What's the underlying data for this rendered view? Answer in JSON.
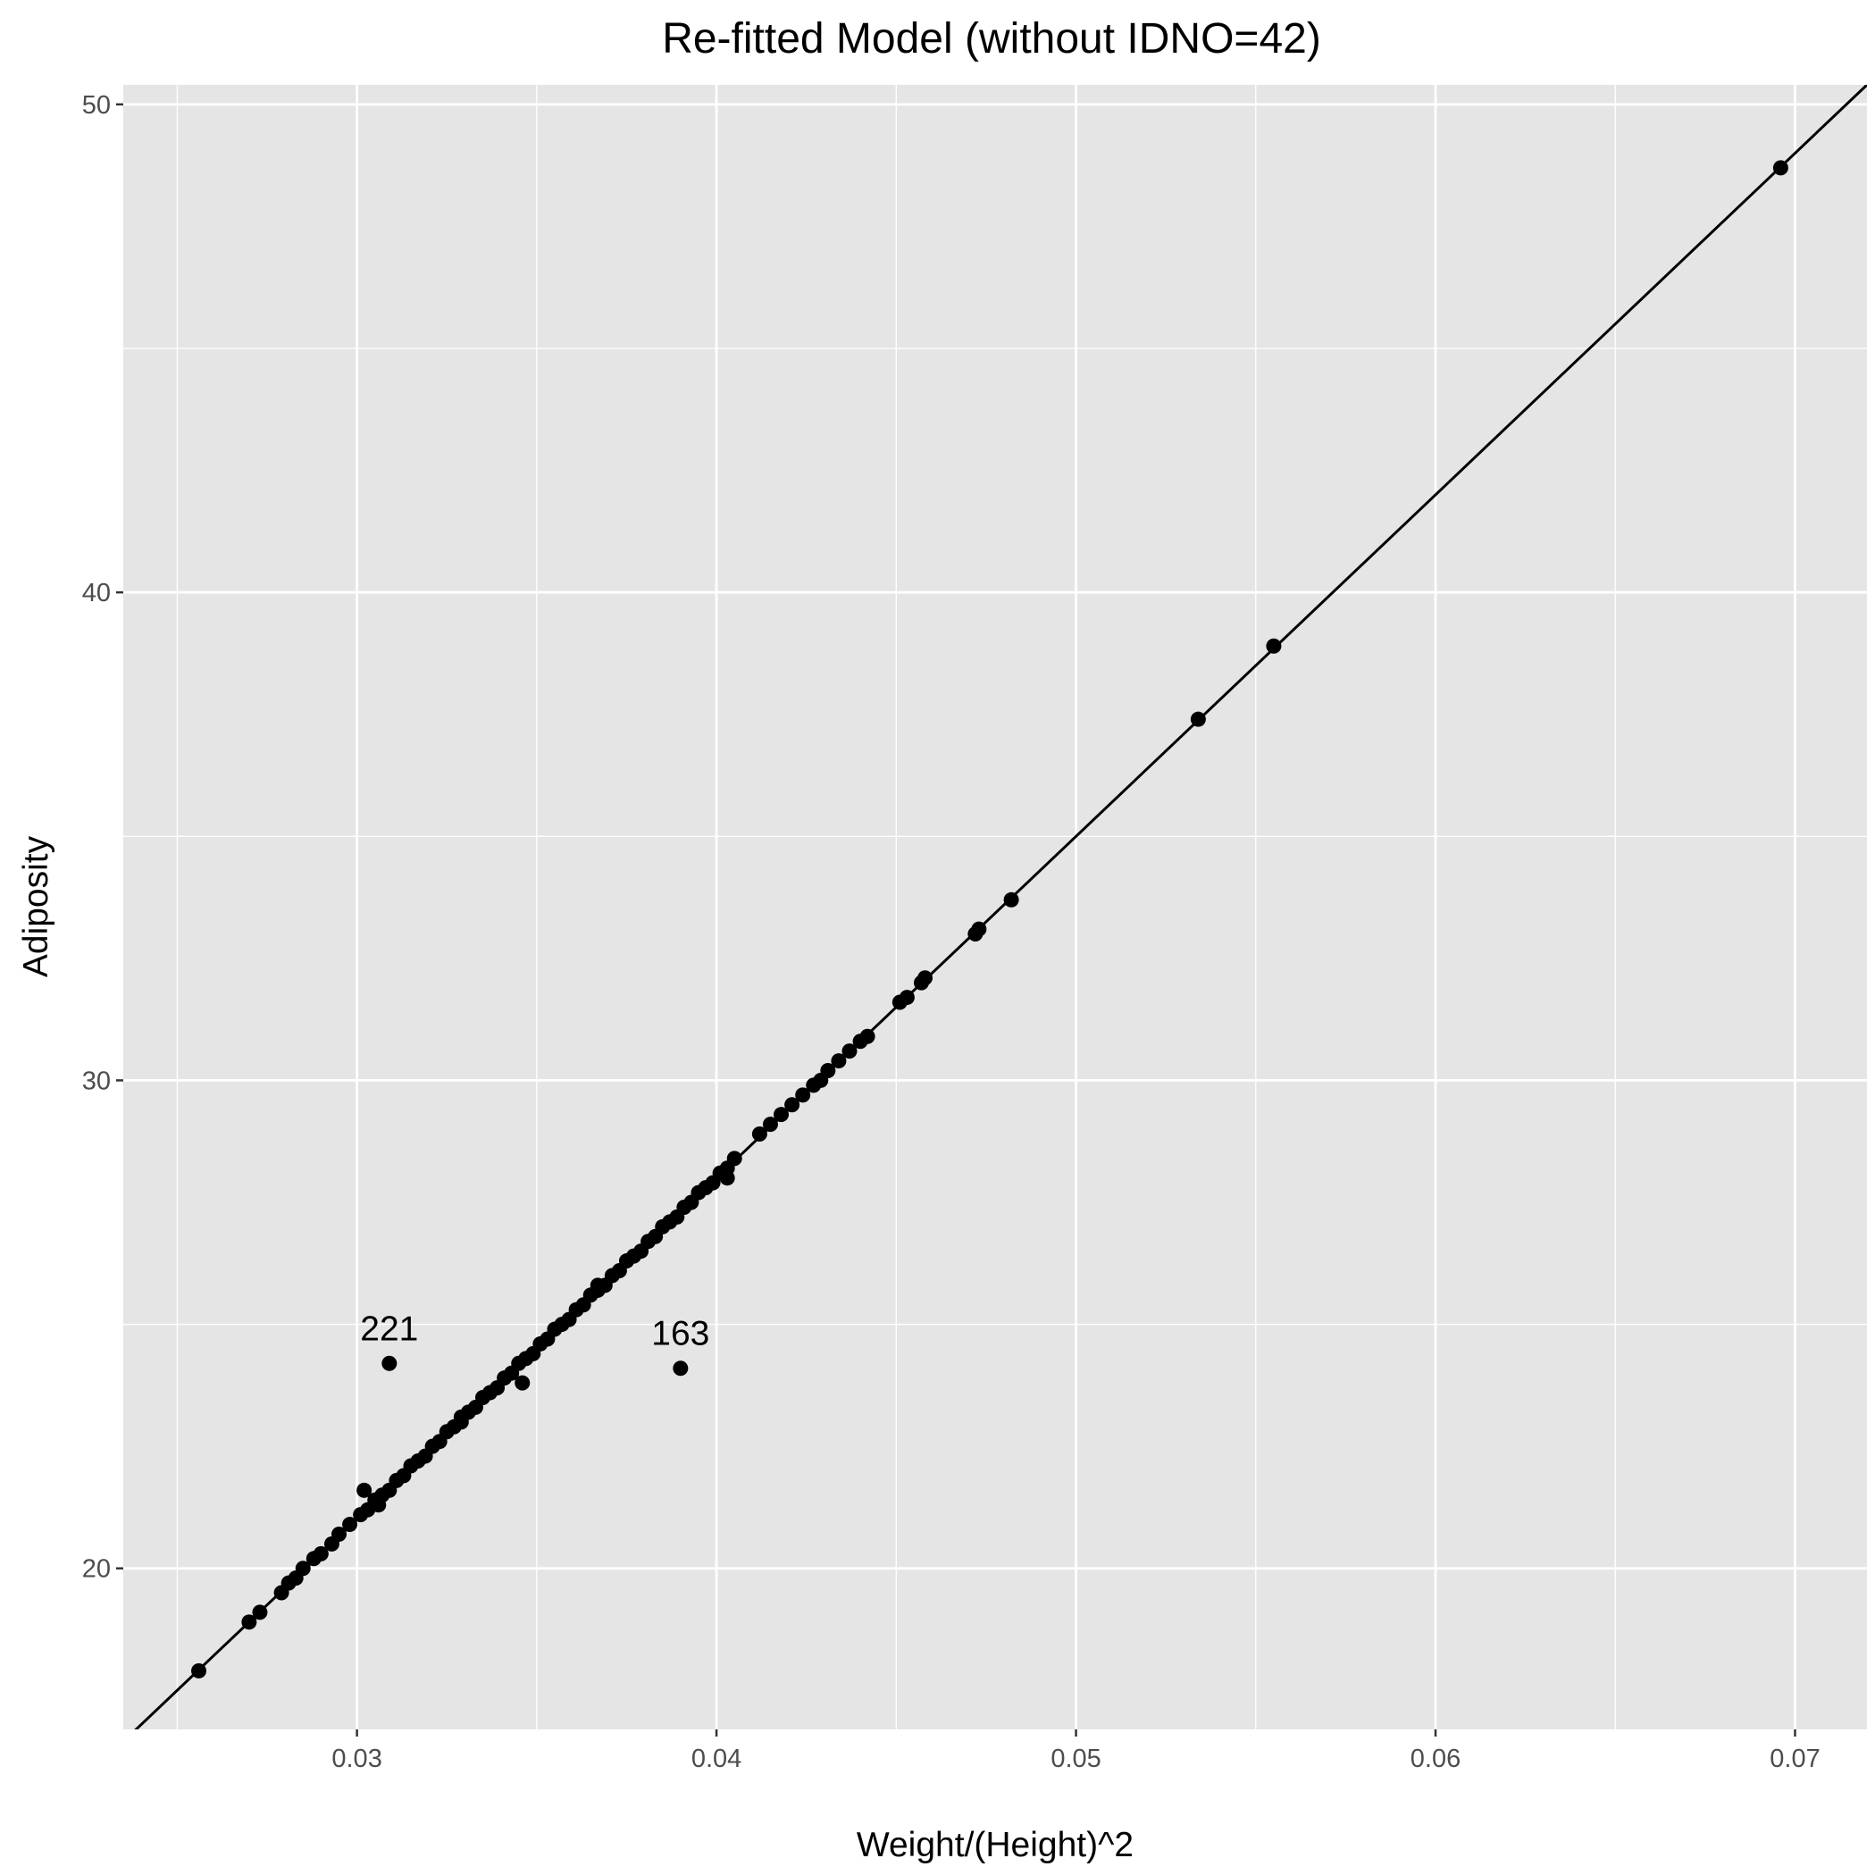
{
  "chart_data": {
    "type": "scatter",
    "title": "Re-fitted Model (without IDNO=42)",
    "xlabel": "Weight/(Height)^2",
    "ylabel": "Adiposity",
    "xlim": [
      0.0235,
      0.072
    ],
    "ylim": [
      16.7,
      50.4
    ],
    "x_ticks": [
      0.03,
      0.04,
      0.05,
      0.06,
      0.07
    ],
    "x_tick_labels": [
      "0.03",
      "0.04",
      "0.05",
      "0.06",
      "0.07"
    ],
    "y_ticks": [
      20,
      30,
      40,
      50
    ],
    "y_tick_labels": [
      "20",
      "30",
      "40",
      "50"
    ],
    "x_minor_ticks": [
      0.025,
      0.035,
      0.045,
      0.055,
      0.065
    ],
    "y_minor_ticks": [
      25,
      35,
      45
    ],
    "grid": true,
    "background": "#e5e5e5",
    "grid_color": "#ffffff",
    "point_color": "#000000",
    "line": {
      "description": "fitted line",
      "slope": 700,
      "intercept": 0
    },
    "points": {
      "x": [
        0.0256,
        0.027,
        0.0273,
        0.0279,
        0.0281,
        0.0283,
        0.0285,
        0.0288,
        0.029,
        0.0293,
        0.0295,
        0.0298,
        0.0301,
        0.0303,
        0.0305,
        0.0307,
        0.0309,
        0.0311,
        0.0313,
        0.0315,
        0.0317,
        0.0319,
        0.0321,
        0.0323,
        0.0325,
        0.0327,
        0.0329,
        0.0331,
        0.0333,
        0.0335,
        0.0337,
        0.0339,
        0.0341,
        0.0343,
        0.0345,
        0.0347,
        0.0349,
        0.0351,
        0.0353,
        0.0355,
        0.0357,
        0.0359,
        0.0361,
        0.0363,
        0.0365,
        0.0367,
        0.0369,
        0.0371,
        0.0373,
        0.0375,
        0.0377,
        0.0379,
        0.0381,
        0.0383,
        0.0385,
        0.0387,
        0.0389,
        0.0391,
        0.0393,
        0.0395,
        0.0397,
        0.0399,
        0.0401,
        0.0403,
        0.0405,
        0.0412,
        0.0415,
        0.0418,
        0.0421,
        0.0424,
        0.0427,
        0.0429,
        0.0431,
        0.0434,
        0.0437,
        0.044,
        0.0442,
        0.0451,
        0.0453,
        0.0457,
        0.0458,
        0.0472,
        0.0473,
        0.0482,
        0.0534,
        0.0555,
        0.0696,
        0.0302,
        0.0306,
        0.0329,
        0.0346,
        0.0367,
        0.0403,
        0.0309,
        0.039
      ],
      "y": [
        17.9,
        18.9,
        19.1,
        19.5,
        19.7,
        19.8,
        20.0,
        20.2,
        20.3,
        20.5,
        20.7,
        20.9,
        21.1,
        21.2,
        21.4,
        21.5,
        21.6,
        21.8,
        21.9,
        22.1,
        22.2,
        22.3,
        22.5,
        22.6,
        22.8,
        22.9,
        23.0,
        23.2,
        23.3,
        23.5,
        23.6,
        23.7,
        23.9,
        24.0,
        24.2,
        24.3,
        24.4,
        24.6,
        24.7,
        24.9,
        25.0,
        25.1,
        25.3,
        25.4,
        25.6,
        25.7,
        25.8,
        26.0,
        26.1,
        26.3,
        26.4,
        26.5,
        26.7,
        26.8,
        27.0,
        27.1,
        27.2,
        27.4,
        27.5,
        27.7,
        27.8,
        27.9,
        28.1,
        28.2,
        28.4,
        28.9,
        29.1,
        29.3,
        29.5,
        29.7,
        29.9,
        30.0,
        30.2,
        30.4,
        30.6,
        30.8,
        30.9,
        31.6,
        31.7,
        32.0,
        32.1,
        33.0,
        33.1,
        33.7,
        37.4,
        38.9,
        48.7,
        21.6,
        21.3,
        23.1,
        23.8,
        25.8,
        28.0,
        24.2,
        24.1
      ]
    },
    "annotations": [
      {
        "label": "221",
        "x": 0.0309,
        "y": 24.2
      },
      {
        "label": "163",
        "x": 0.039,
        "y": 24.1
      }
    ]
  }
}
